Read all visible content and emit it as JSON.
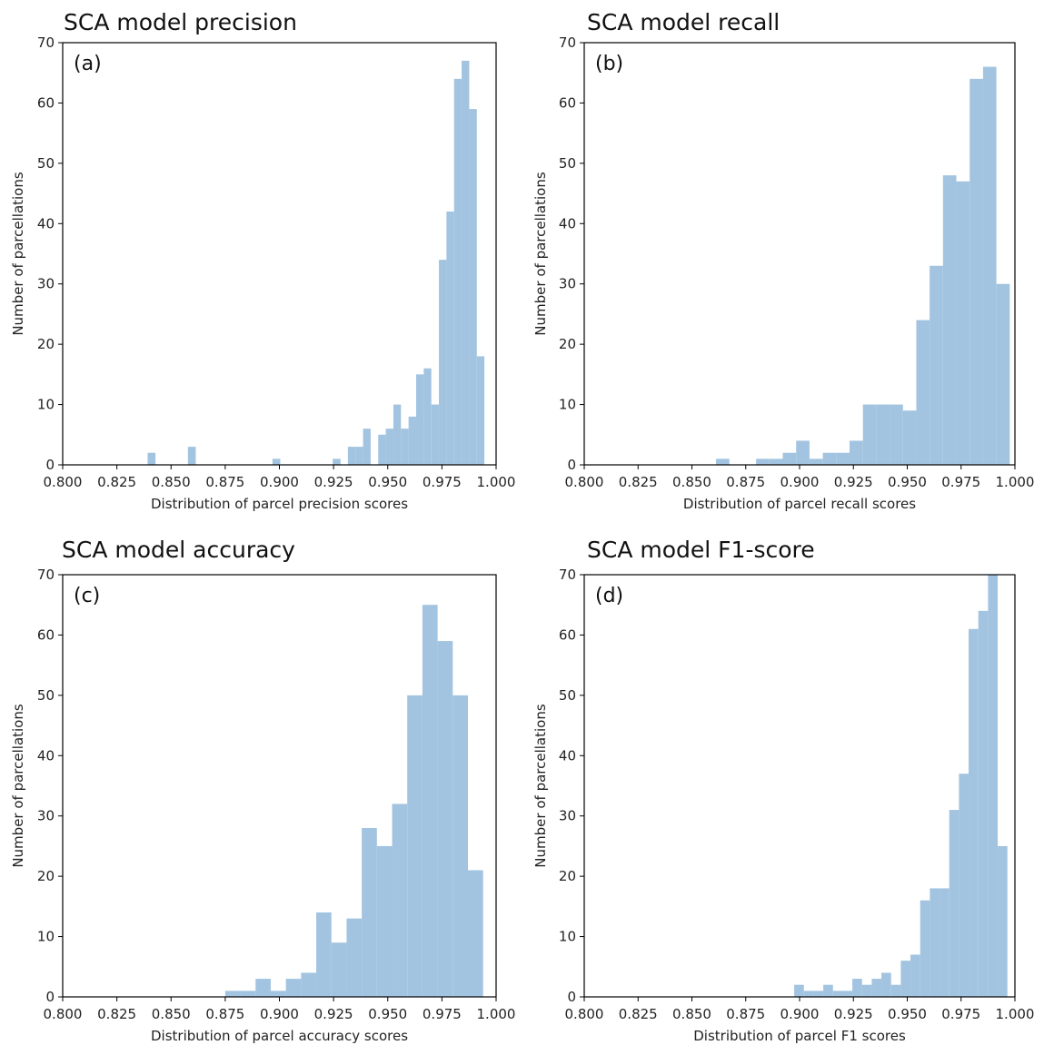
{
  "chart_data": [
    {
      "type": "bar",
      "title": "SCA model precision",
      "panel_label": "(a)",
      "xlabel": "Distribution of parcel precision scores",
      "ylabel": "Number of parcellations",
      "xlim": [
        0.8,
        1.0
      ],
      "ylim": [
        0,
        70
      ],
      "xticks": [
        "0.800",
        "0.825",
        "0.850",
        "0.875",
        "0.900",
        "0.925",
        "0.950",
        "0.975",
        "1.000"
      ],
      "yticks": [
        "0",
        "10",
        "20",
        "30",
        "40",
        "50",
        "60",
        "70"
      ],
      "grid": false,
      "bar_color": "#a2c4e0",
      "bins": [
        {
          "start": 0.8392,
          "end": 0.8428,
          "value": 2
        },
        {
          "start": 0.8578,
          "end": 0.8614,
          "value": 3
        },
        {
          "start": 0.8968,
          "end": 0.9004,
          "value": 1
        },
        {
          "start": 0.9246,
          "end": 0.9282,
          "value": 1
        },
        {
          "start": 0.9316,
          "end": 0.9351,
          "value": 3
        },
        {
          "start": 0.9351,
          "end": 0.9386,
          "value": 3
        },
        {
          "start": 0.9386,
          "end": 0.9421,
          "value": 6
        },
        {
          "start": 0.9456,
          "end": 0.9491,
          "value": 5
        },
        {
          "start": 0.9491,
          "end": 0.9526,
          "value": 6
        },
        {
          "start": 0.9526,
          "end": 0.9561,
          "value": 10
        },
        {
          "start": 0.9561,
          "end": 0.9596,
          "value": 6
        },
        {
          "start": 0.9596,
          "end": 0.9631,
          "value": 8
        },
        {
          "start": 0.9631,
          "end": 0.9666,
          "value": 15
        },
        {
          "start": 0.9666,
          "end": 0.9701,
          "value": 16
        },
        {
          "start": 0.9701,
          "end": 0.9736,
          "value": 10
        },
        {
          "start": 0.9736,
          "end": 0.9771,
          "value": 34
        },
        {
          "start": 0.9771,
          "end": 0.9806,
          "value": 42
        },
        {
          "start": 0.9806,
          "end": 0.9841,
          "value": 64
        },
        {
          "start": 0.9841,
          "end": 0.9876,
          "value": 67
        },
        {
          "start": 0.9876,
          "end": 0.9911,
          "value": 59
        },
        {
          "start": 0.9911,
          "end": 0.9946,
          "value": 18
        }
      ]
    },
    {
      "type": "bar",
      "title": "SCA model recall",
      "panel_label": "(b)",
      "xlabel": "Distribution of parcel recall scores",
      "ylabel": "Number of parcellations",
      "xlim": [
        0.8,
        1.0
      ],
      "ylim": [
        0,
        70
      ],
      "xticks": [
        "0.800",
        "0.825",
        "0.850",
        "0.875",
        "0.900",
        "0.925",
        "0.950",
        "0.975",
        "1.000"
      ],
      "yticks": [
        "0",
        "10",
        "20",
        "30",
        "40",
        "50",
        "60",
        "70"
      ],
      "grid": false,
      "bar_color": "#a2c4e0",
      "bins": [
        {
          "start": 0.8612,
          "end": 0.8674,
          "value": 1
        },
        {
          "start": 0.8798,
          "end": 0.886,
          "value": 1
        },
        {
          "start": 0.886,
          "end": 0.8922,
          "value": 1
        },
        {
          "start": 0.8922,
          "end": 0.8984,
          "value": 2
        },
        {
          "start": 0.8984,
          "end": 0.9046,
          "value": 4
        },
        {
          "start": 0.9046,
          "end": 0.9108,
          "value": 1
        },
        {
          "start": 0.9108,
          "end": 0.917,
          "value": 2
        },
        {
          "start": 0.917,
          "end": 0.9232,
          "value": 2
        },
        {
          "start": 0.9232,
          "end": 0.9294,
          "value": 4
        },
        {
          "start": 0.9294,
          "end": 0.9356,
          "value": 10
        },
        {
          "start": 0.9356,
          "end": 0.9418,
          "value": 10
        },
        {
          "start": 0.9418,
          "end": 0.948,
          "value": 10
        },
        {
          "start": 0.948,
          "end": 0.9542,
          "value": 9
        },
        {
          "start": 0.9542,
          "end": 0.9604,
          "value": 24
        },
        {
          "start": 0.9604,
          "end": 0.9666,
          "value": 33
        },
        {
          "start": 0.9666,
          "end": 0.9728,
          "value": 48
        },
        {
          "start": 0.9728,
          "end": 0.979,
          "value": 47
        },
        {
          "start": 0.979,
          "end": 0.9852,
          "value": 64
        },
        {
          "start": 0.9852,
          "end": 0.9914,
          "value": 66
        },
        {
          "start": 0.9914,
          "end": 0.9976,
          "value": 30
        }
      ]
    },
    {
      "type": "bar",
      "title": "SCA model accuracy",
      "panel_label": "(c)",
      "xlabel": "Distribution of parcel accuracy scores",
      "ylabel": "Number of parcellations",
      "xlim": [
        0.8,
        1.0
      ],
      "ylim": [
        0,
        70
      ],
      "xticks": [
        "0.800",
        "0.825",
        "0.850",
        "0.875",
        "0.900",
        "0.925",
        "0.950",
        "0.975",
        "1.000"
      ],
      "yticks": [
        "0",
        "10",
        "20",
        "30",
        "40",
        "50",
        "60",
        "70"
      ],
      "grid": false,
      "bar_color": "#a2c4e0",
      "bins": [
        {
          "start": 0.875,
          "end": 0.882,
          "value": 1
        },
        {
          "start": 0.882,
          "end": 0.889,
          "value": 1
        },
        {
          "start": 0.889,
          "end": 0.896,
          "value": 3
        },
        {
          "start": 0.896,
          "end": 0.903,
          "value": 1
        },
        {
          "start": 0.903,
          "end": 0.91,
          "value": 3
        },
        {
          "start": 0.91,
          "end": 0.917,
          "value": 4
        },
        {
          "start": 0.917,
          "end": 0.924,
          "value": 14
        },
        {
          "start": 0.924,
          "end": 0.931,
          "value": 9
        },
        {
          "start": 0.931,
          "end": 0.938,
          "value": 13
        },
        {
          "start": 0.938,
          "end": 0.945,
          "value": 28
        },
        {
          "start": 0.945,
          "end": 0.952,
          "value": 25
        },
        {
          "start": 0.952,
          "end": 0.959,
          "value": 32
        },
        {
          "start": 0.959,
          "end": 0.966,
          "value": 50
        },
        {
          "start": 0.966,
          "end": 0.973,
          "value": 65
        },
        {
          "start": 0.973,
          "end": 0.98,
          "value": 59
        },
        {
          "start": 0.98,
          "end": 0.987,
          "value": 50
        },
        {
          "start": 0.987,
          "end": 0.994,
          "value": 21
        }
      ]
    },
    {
      "type": "bar",
      "title": "SCA model F1-score",
      "panel_label": "(d)",
      "xlabel": "Distribution of parcel F1 scores",
      "ylabel": "Number of parcellations",
      "xlim": [
        0.8,
        1.0
      ],
      "ylim": [
        0,
        70
      ],
      "xticks": [
        "0.800",
        "0.825",
        "0.850",
        "0.875",
        "0.900",
        "0.925",
        "0.950",
        "0.975",
        "1.000"
      ],
      "yticks": [
        "0",
        "10",
        "20",
        "30",
        "40",
        "50",
        "60",
        "70"
      ],
      "grid": false,
      "bar_color": "#a2c4e0",
      "bins": [
        {
          "start": 0.8975,
          "end": 0.902,
          "value": 2
        },
        {
          "start": 0.902,
          "end": 0.9065,
          "value": 1
        },
        {
          "start": 0.9065,
          "end": 0.911,
          "value": 1
        },
        {
          "start": 0.911,
          "end": 0.9155,
          "value": 2
        },
        {
          "start": 0.9155,
          "end": 0.92,
          "value": 1
        },
        {
          "start": 0.92,
          "end": 0.9245,
          "value": 1
        },
        {
          "start": 0.9245,
          "end": 0.929,
          "value": 3
        },
        {
          "start": 0.929,
          "end": 0.9335,
          "value": 2
        },
        {
          "start": 0.9335,
          "end": 0.938,
          "value": 3
        },
        {
          "start": 0.938,
          "end": 0.9425,
          "value": 4
        },
        {
          "start": 0.9425,
          "end": 0.947,
          "value": 2
        },
        {
          "start": 0.947,
          "end": 0.9515,
          "value": 6
        },
        {
          "start": 0.9515,
          "end": 0.956,
          "value": 7
        },
        {
          "start": 0.956,
          "end": 0.9605,
          "value": 16
        },
        {
          "start": 0.9605,
          "end": 0.965,
          "value": 18
        },
        {
          "start": 0.965,
          "end": 0.9695,
          "value": 18
        },
        {
          "start": 0.9695,
          "end": 0.974,
          "value": 31
        },
        {
          "start": 0.974,
          "end": 0.9785,
          "value": 37
        },
        {
          "start": 0.9785,
          "end": 0.983,
          "value": 61
        },
        {
          "start": 0.983,
          "end": 0.9875,
          "value": 64
        },
        {
          "start": 0.9875,
          "end": 0.992,
          "value": 70
        },
        {
          "start": 0.992,
          "end": 0.9965,
          "value": 25
        }
      ]
    }
  ]
}
